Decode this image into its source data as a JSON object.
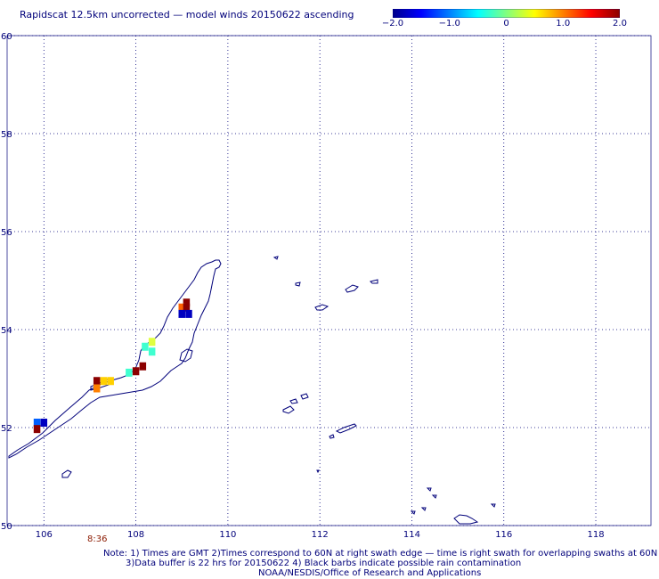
{
  "title": "Rapidscat 12.5km uncorrected — model winds 20150622 ascending",
  "colorbar": {
    "labels": [
      "−2.0",
      "−1.0",
      "0",
      "1.0",
      "2.0"
    ],
    "values": [
      -2.0,
      -1.0,
      0,
      1.0,
      2.0
    ],
    "colors": [
      "#00008b",
      "#0000ff",
      "#0080ff",
      "#00ffff",
      "#80ff80",
      "#ffff00",
      "#ff8000",
      "#ff0000",
      "#8b0000"
    ]
  },
  "map": {
    "lat_labels": [
      "60",
      "58",
      "56",
      "54",
      "52",
      "50"
    ],
    "lon_labels": [
      "106",
      "108",
      "110",
      "112",
      "114",
      "116",
      "118"
    ],
    "lat_range": [
      50,
      60
    ],
    "lon_range": [
      105.2,
      119.2
    ],
    "coast_color": "#00007a",
    "wind_cells": [
      {
        "lon": 109.1,
        "lat": 54.55,
        "color": "#8b0000"
      },
      {
        "lon": 109.0,
        "lat": 54.45,
        "color": "#ff6000"
      },
      {
        "lon": 109.1,
        "lat": 54.45,
        "color": "#8b0000"
      },
      {
        "lon": 109.0,
        "lat": 54.32,
        "color": "#0000c0"
      },
      {
        "lon": 109.15,
        "lat": 54.32,
        "color": "#0000c0"
      },
      {
        "lon": 108.35,
        "lat": 53.75,
        "color": "#e0ff40"
      },
      {
        "lon": 108.2,
        "lat": 53.65,
        "color": "#40ffd0"
      },
      {
        "lon": 108.35,
        "lat": 53.55,
        "color": "#40ffd0"
      },
      {
        "lon": 108.15,
        "lat": 53.25,
        "color": "#8b0000"
      },
      {
        "lon": 108.0,
        "lat": 53.15,
        "color": "#8b0000"
      },
      {
        "lon": 107.85,
        "lat": 53.12,
        "color": "#40ffd0"
      },
      {
        "lon": 107.15,
        "lat": 52.95,
        "color": "#8b0000"
      },
      {
        "lon": 107.3,
        "lat": 52.95,
        "color": "#ffd000"
      },
      {
        "lon": 107.45,
        "lat": 52.95,
        "color": "#ffd000"
      },
      {
        "lon": 107.15,
        "lat": 52.8,
        "color": "#ff8000"
      },
      {
        "lon": 105.85,
        "lat": 52.1,
        "color": "#0060ff"
      },
      {
        "lon": 106.0,
        "lat": 52.1,
        "color": "#0000c0"
      },
      {
        "lon": 105.85,
        "lat": 51.97,
        "color": "#8b0000"
      }
    ]
  },
  "time_label": "8:36",
  "notes": [
    "Note: 1) Times are GMT 2)Times correspond to 60N at right swath edge — time is right swath for overlapping swaths at 60N",
    "3)Data buffer is 22 hrs for 20150622 4) Black barbs indicate possible rain contamination",
    "NOAA/NESDIS/Office of Research and Applications"
  ]
}
